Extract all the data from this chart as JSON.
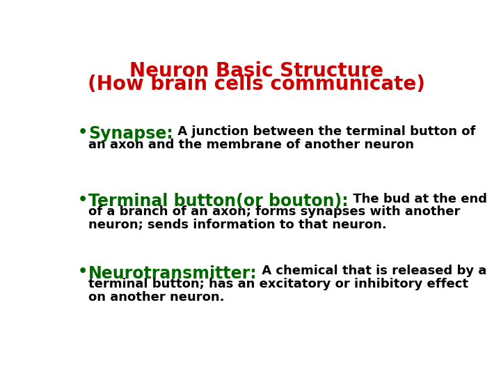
{
  "title_line1": "Neuron Basic Structure",
  "title_line2": "(How brain cells communicate)",
  "title_color": "#cc0000",
  "background_color": "#ffffff",
  "bullet_color": "#006600",
  "items": [
    {
      "term": "Synapse:",
      "term_color": "#006600",
      "term_fontsize": 17,
      "def_line1": " A junction between the terminal button of",
      "def_line2": "an axon and the membrane of another neuron",
      "def_color": "#000000",
      "def_fontsize": 13
    },
    {
      "term": "Terminal button(or bouton):",
      "term_color": "#006600",
      "term_fontsize": 17,
      "def_line1": " The bud at the end",
      "def_line2": "of a branch of an axon; forms synapses with another",
      "def_line3": "neuron; sends information to that neuron.",
      "def_color": "#000000",
      "def_fontsize": 13
    },
    {
      "term": "Neurotransmitter:",
      "term_color": "#006600",
      "term_fontsize": 17,
      "def_line1": " A chemical that is released by a",
      "def_line2": "terminal button; has an excitatory or inhibitory effect",
      "def_line3": "on another neuron.",
      "def_color": "#000000",
      "def_fontsize": 13
    }
  ],
  "title_fontsize": 20,
  "bullet_fontsize": 16
}
